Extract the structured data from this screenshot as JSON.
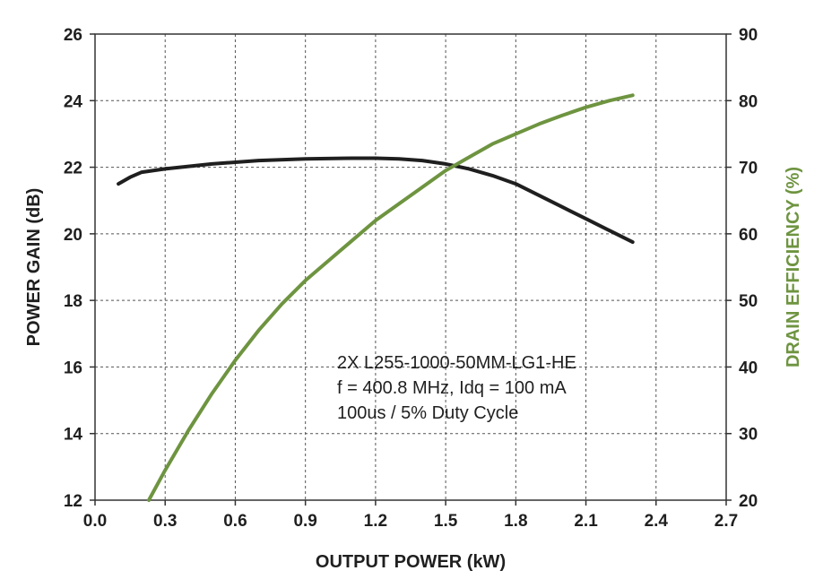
{
  "chart_data": {
    "type": "line",
    "title": "",
    "xlabel": "OUTPUT POWER (kW)",
    "ylabel": "POWER GAIN (dB)",
    "y2label": "DRAIN EFFICIENCY (%)",
    "xlim": [
      0.0,
      2.7
    ],
    "ylim": [
      12,
      26
    ],
    "y2lim": [
      20,
      90
    ],
    "x_ticks": [
      "0.0",
      "0.3",
      "0.6",
      "0.9",
      "1.2",
      "1.5",
      "1.8",
      "2.1",
      "2.4",
      "2.7"
    ],
    "y_ticks": [
      "12",
      "14",
      "16",
      "18",
      "20",
      "22",
      "24",
      "26"
    ],
    "y2_ticks": [
      "20",
      "30",
      "40",
      "50",
      "60",
      "70",
      "80",
      "90"
    ],
    "grid": true,
    "annotation": [
      "2X L255-1000-50MM-LG1-HE",
      "f = 400.8 MHz, Idq = 100 mA",
      "100us / 5% Duty Cycle"
    ],
    "series": [
      {
        "axis": "left",
        "color": "#1f1f1f",
        "x": [
          0.1,
          0.15,
          0.2,
          0.3,
          0.5,
          0.7,
          0.9,
          1.1,
          1.2,
          1.3,
          1.4,
          1.5,
          1.6,
          1.7,
          1.8,
          1.9,
          2.0,
          2.1,
          2.2,
          2.3
        ],
        "values": [
          21.5,
          21.7,
          21.85,
          21.95,
          22.1,
          22.2,
          22.25,
          22.27,
          22.27,
          22.25,
          22.2,
          22.1,
          21.95,
          21.75,
          21.5,
          21.15,
          20.8,
          20.45,
          20.1,
          19.75
        ]
      },
      {
        "axis": "right",
        "color": "#6e9440",
        "x": [
          0.23,
          0.3,
          0.4,
          0.5,
          0.6,
          0.7,
          0.8,
          0.9,
          1.0,
          1.1,
          1.2,
          1.3,
          1.4,
          1.5,
          1.6,
          1.7,
          1.8,
          1.9,
          2.0,
          2.1,
          2.2,
          2.3
        ],
        "values": [
          20.0,
          24.5,
          30.5,
          36.0,
          41.0,
          45.5,
          49.5,
          53.0,
          56.0,
          59.0,
          62.0,
          64.5,
          67.0,
          69.5,
          71.5,
          73.5,
          75.0,
          76.5,
          77.8,
          79.0,
          80.0,
          80.8
        ]
      }
    ]
  },
  "colors": {
    "left_axis_title": "#1f1f1f",
    "right_axis_title": "#6e9440"
  }
}
